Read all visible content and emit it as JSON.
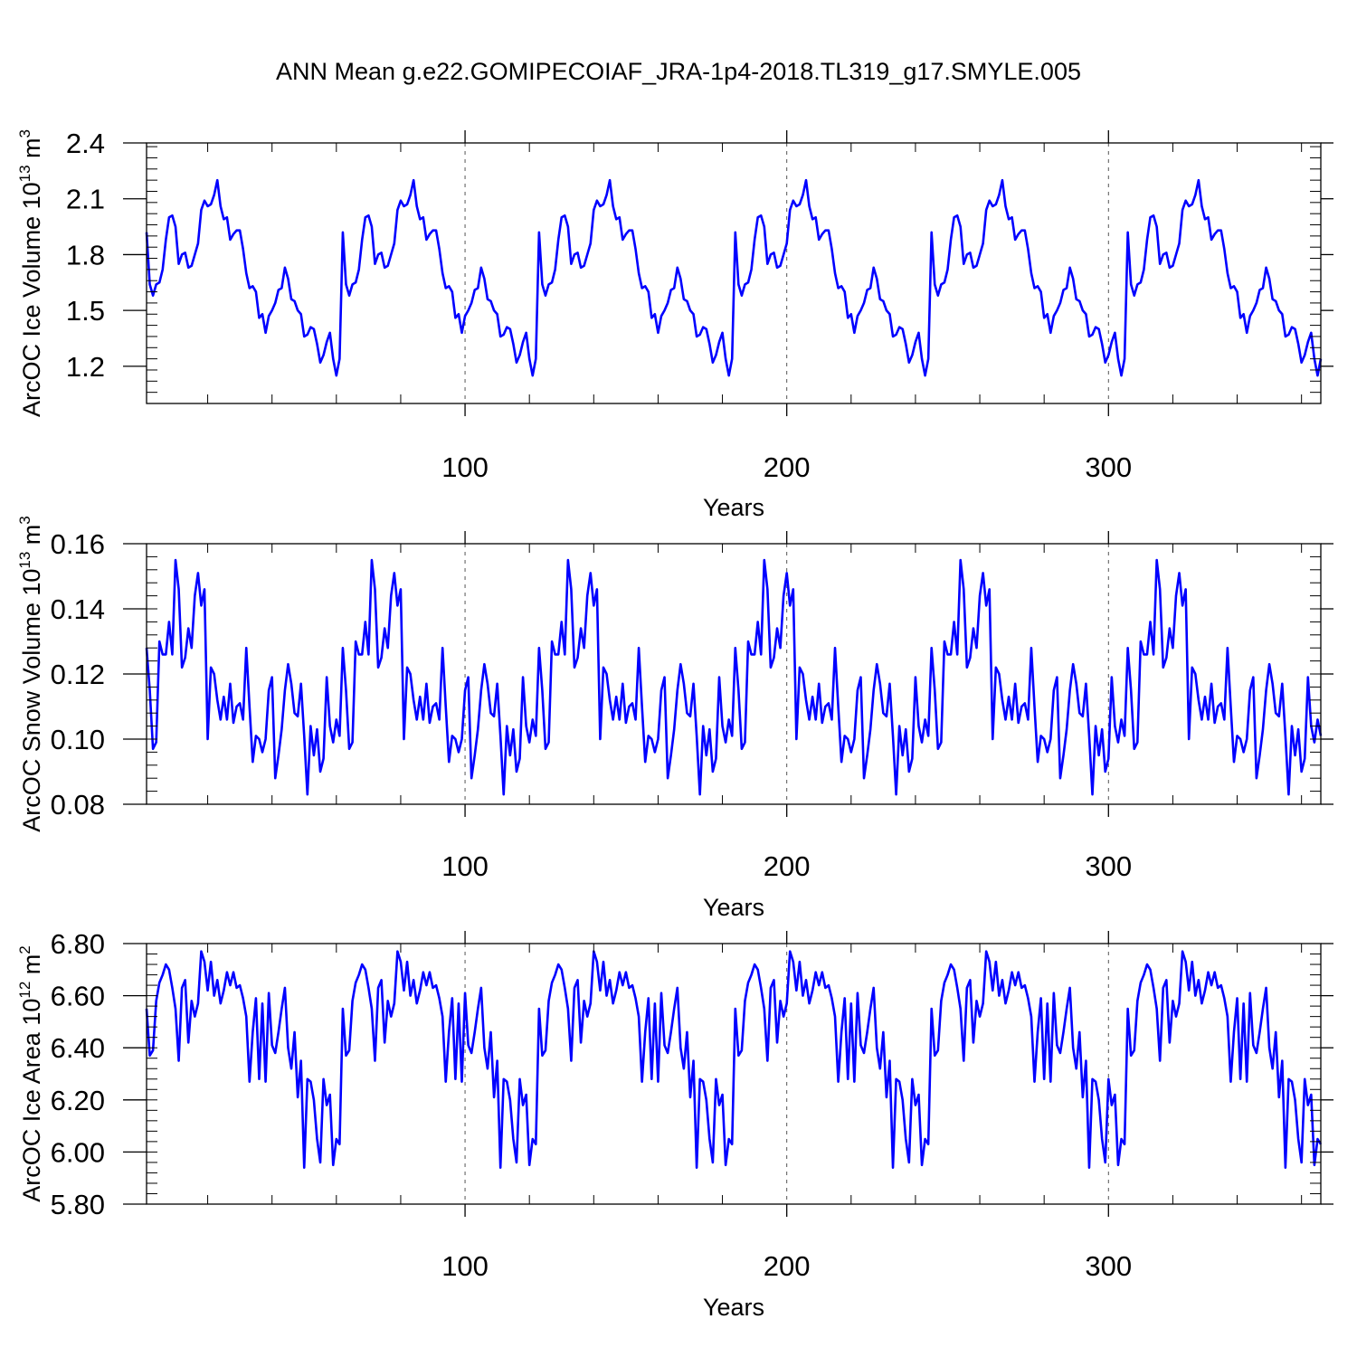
{
  "figure_title": "ANN Mean g.e22.GOMIPECOIAF_JRA-1p4-2018.TL319_g17.SMYLE.005",
  "line_color": "#0000ff",
  "chart_data": [
    {
      "type": "line",
      "title": "ANN Mean g.e22.GOMIPECOIAF_JRA-1p4-2018.TL319_g17.SMYLE.005",
      "ylabel": "ArcOC Ice Volume 10",
      "ylabel_exp": "13",
      "ylabel_unit": " m",
      "ylabel_unit_exp": "3",
      "xlabel": "Years",
      "xlim": [
        1,
        366
      ],
      "ylim": [
        1.0,
        2.4
      ],
      "yticks": [
        1.2,
        1.5,
        1.8,
        2.1,
        2.4
      ],
      "ytick_labels": [
        "1.2",
        "1.5",
        "1.8",
        "2.1",
        "2.4"
      ],
      "ytick_minor": 0.06,
      "xticks": [
        100,
        200,
        300
      ],
      "xtick_labels": [
        "100",
        "200",
        "300"
      ],
      "xtick_minor": 20,
      "vlines": [
        100,
        200,
        300
      ],
      "period": 61,
      "base": [
        1.92,
        1.64,
        1.58,
        1.64,
        1.65,
        1.72,
        1.88,
        2.0,
        2.01,
        1.95,
        1.75,
        1.8,
        1.81,
        1.73,
        1.74,
        1.8,
        1.86,
        2.04,
        2.09,
        2.06,
        2.07,
        2.12,
        2.2,
        2.06,
        1.99,
        2.0,
        1.88,
        1.91,
        1.93,
        1.93,
        1.83,
        1.7,
        1.62,
        1.63,
        1.6,
        1.46,
        1.48,
        1.38,
        1.47,
        1.5,
        1.54,
        1.61,
        1.62,
        1.73,
        1.67,
        1.56,
        1.55,
        1.5,
        1.48,
        1.36,
        1.37,
        1.41,
        1.4,
        1.32,
        1.22,
        1.26,
        1.33,
        1.38,
        1.24,
        1.15,
        1.24
      ]
    },
    {
      "type": "line",
      "ylabel": "ArcOC Snow Volume 10",
      "ylabel_exp": "13",
      "ylabel_unit": " m",
      "ylabel_unit_exp": "3",
      "xlabel": "Years",
      "xlim": [
        1,
        366
      ],
      "ylim": [
        0.08,
        0.16
      ],
      "yticks": [
        0.08,
        0.1,
        0.12,
        0.14,
        0.16
      ],
      "ytick_labels": [
        "0.08",
        "0.10",
        "0.12",
        "0.14",
        "0.16"
      ],
      "ytick_minor": 0.004,
      "xticks": [
        100,
        200,
        300
      ],
      "xtick_labels": [
        "100",
        "200",
        "300"
      ],
      "xtick_minor": 20,
      "vlines": [
        100,
        200,
        300
      ],
      "period": 61,
      "base": [
        0.128,
        0.115,
        0.097,
        0.099,
        0.13,
        0.126,
        0.126,
        0.136,
        0.126,
        0.155,
        0.146,
        0.122,
        0.125,
        0.134,
        0.128,
        0.144,
        0.151,
        0.141,
        0.146,
        0.1,
        0.122,
        0.12,
        0.112,
        0.106,
        0.113,
        0.106,
        0.117,
        0.105,
        0.11,
        0.111,
        0.106,
        0.128,
        0.11,
        0.093,
        0.101,
        0.1,
        0.096,
        0.1,
        0.115,
        0.119,
        0.088,
        0.095,
        0.103,
        0.115,
        0.123,
        0.117,
        0.108,
        0.107,
        0.117,
        0.101,
        0.083,
        0.104,
        0.095,
        0.103,
        0.09,
        0.094,
        0.119,
        0.104,
        0.099,
        0.106,
        0.101
      ]
    },
    {
      "type": "line",
      "ylabel": "ArcOC Ice Area 10",
      "ylabel_exp": "12",
      "ylabel_unit": " m",
      "ylabel_unit_exp": "2",
      "xlabel": "Years",
      "xlim": [
        1,
        366
      ],
      "ylim": [
        5.8,
        6.8
      ],
      "yticks": [
        5.8,
        6.0,
        6.2,
        6.4,
        6.6,
        6.8
      ],
      "ytick_labels": [
        "5.80",
        "6.00",
        "6.20",
        "6.40",
        "6.60",
        "6.80"
      ],
      "ytick_minor": 0.04,
      "xticks": [
        100,
        200,
        300
      ],
      "xtick_labels": [
        "100",
        "200",
        "300"
      ],
      "xtick_minor": 20,
      "vlines": [
        100,
        200,
        300
      ],
      "period": 61,
      "base": [
        6.55,
        6.37,
        6.39,
        6.58,
        6.65,
        6.68,
        6.72,
        6.7,
        6.63,
        6.55,
        6.35,
        6.63,
        6.66,
        6.42,
        6.58,
        6.52,
        6.57,
        6.77,
        6.73,
        6.62,
        6.73,
        6.6,
        6.66,
        6.57,
        6.62,
        6.69,
        6.64,
        6.69,
        6.63,
        6.64,
        6.59,
        6.52,
        6.27,
        6.46,
        6.59,
        6.28,
        6.57,
        6.27,
        6.61,
        6.41,
        6.38,
        6.46,
        6.55,
        6.63,
        6.4,
        6.32,
        6.46,
        6.21,
        6.35,
        5.94,
        6.28,
        6.27,
        6.2,
        6.05,
        5.96,
        6.28,
        6.18,
        6.22,
        5.95,
        6.05,
        6.03
      ]
    }
  ]
}
